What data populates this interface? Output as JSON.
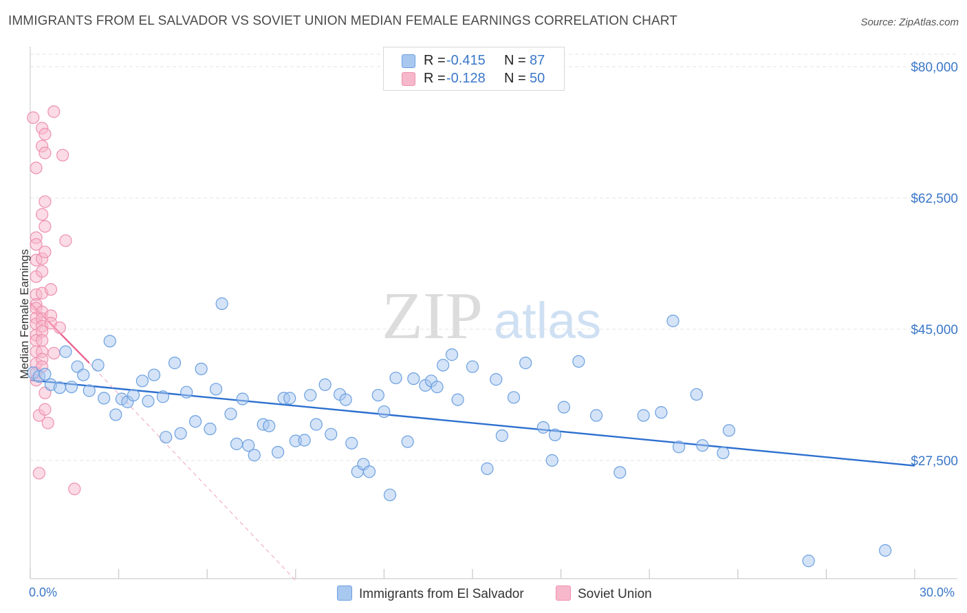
{
  "title": "IMMIGRANTS FROM EL SALVADOR VS SOVIET UNION MEDIAN FEMALE EARNINGS CORRELATION CHART",
  "source": "Source: ZipAtlas.com",
  "watermark": {
    "zip": "ZIP",
    "atlas": "atlas"
  },
  "legend": {
    "rows": [
      {
        "r_label": "R = ",
        "r_value": "-0.415",
        "n_label": "N = ",
        "n_value": "87",
        "color": "#a9c8f0"
      },
      {
        "r_label": "R = ",
        "r_value": "-0.128",
        "n_label": "N = ",
        "n_value": "50",
        "color": "#f7b8cb"
      }
    ]
  },
  "bottom_legend": {
    "series1": "Immigrants from El Salvador",
    "series2": "Soviet Union"
  },
  "colors": {
    "blue_fill": "#a9c8f0",
    "blue_stroke": "#6a9fe0",
    "blue_line": "#2c6fcf",
    "pink_fill": "#f7b8cb",
    "pink_stroke": "#ee8fae",
    "pink_line": "#e8628f",
    "axis_text": "#3a77c8",
    "grid": "#e3e3e3"
  },
  "chart_data": {
    "type": "scatter",
    "title": "IMMIGRANTS FROM EL SALVADOR VS SOVIET UNION MEDIAN FEMALE EARNINGS CORRELATION CHART",
    "xlabel": "",
    "ylabel": "Median Female Earnings",
    "xlim": [
      0,
      30
    ],
    "ylim": [
      10000,
      82500
    ],
    "x_tick_labels": [
      "0.0%",
      "30.0%"
    ],
    "y_ticks": [
      {
        "value": 80000,
        "label": "$80,000"
      },
      {
        "value": 62500,
        "label": "$62,500"
      },
      {
        "value": 45000,
        "label": "$45,000"
      },
      {
        "value": 27500,
        "label": "$27,500"
      }
    ],
    "series": [
      {
        "name": "Immigrants from El Salvador",
        "R": -0.415,
        "N": 87,
        "trend": {
          "x0": 0,
          "y0": 38200,
          "x1": 30,
          "y1": 26800
        },
        "points": [
          [
            0.1,
            39200
          ],
          [
            0.3,
            38700
          ],
          [
            0.5,
            39000
          ],
          [
            0.7,
            37600
          ],
          [
            1.0,
            37200
          ],
          [
            1.2,
            42000
          ],
          [
            1.4,
            37300
          ],
          [
            1.6,
            40000
          ],
          [
            1.8,
            38900
          ],
          [
            2.0,
            36800
          ],
          [
            2.3,
            40200
          ],
          [
            2.5,
            35800
          ],
          [
            2.7,
            43400
          ],
          [
            2.9,
            33600
          ],
          [
            3.1,
            35700
          ],
          [
            3.3,
            35300
          ],
          [
            3.5,
            36200
          ],
          [
            3.8,
            38100
          ],
          [
            4.0,
            35400
          ],
          [
            4.2,
            38900
          ],
          [
            4.5,
            36000
          ],
          [
            4.6,
            30600
          ],
          [
            4.9,
            40500
          ],
          [
            5.1,
            31100
          ],
          [
            5.3,
            36600
          ],
          [
            5.6,
            32700
          ],
          [
            5.8,
            39700
          ],
          [
            6.1,
            31700
          ],
          [
            6.3,
            37000
          ],
          [
            6.5,
            48400
          ],
          [
            6.8,
            33700
          ],
          [
            7.0,
            29700
          ],
          [
            7.2,
            35700
          ],
          [
            7.4,
            29500
          ],
          [
            7.6,
            28200
          ],
          [
            7.9,
            32300
          ],
          [
            8.1,
            32100
          ],
          [
            8.4,
            28600
          ],
          [
            8.6,
            35800
          ],
          [
            8.8,
            35800
          ],
          [
            9.0,
            30100
          ],
          [
            9.3,
            30200
          ],
          [
            9.5,
            36200
          ],
          [
            9.7,
            32300
          ],
          [
            10.0,
            37600
          ],
          [
            10.2,
            31000
          ],
          [
            10.5,
            36300
          ],
          [
            10.7,
            35600
          ],
          [
            10.9,
            29800
          ],
          [
            11.1,
            26000
          ],
          [
            11.3,
            27000
          ],
          [
            11.5,
            26000
          ],
          [
            11.8,
            36200
          ],
          [
            12.0,
            34000
          ],
          [
            12.2,
            22900
          ],
          [
            12.4,
            38500
          ],
          [
            12.8,
            30000
          ],
          [
            13.0,
            38400
          ],
          [
            13.4,
            37500
          ],
          [
            13.6,
            38100
          ],
          [
            13.8,
            37300
          ],
          [
            14.0,
            40200
          ],
          [
            14.3,
            41600
          ],
          [
            14.5,
            35600
          ],
          [
            15.0,
            40000
          ],
          [
            15.5,
            26400
          ],
          [
            15.8,
            38300
          ],
          [
            16.0,
            30800
          ],
          [
            16.4,
            35900
          ],
          [
            16.8,
            40500
          ],
          [
            17.4,
            31900
          ],
          [
            17.7,
            27500
          ],
          [
            17.8,
            30900
          ],
          [
            18.1,
            34600
          ],
          [
            18.6,
            40700
          ],
          [
            19.2,
            33500
          ],
          [
            20.0,
            25900
          ],
          [
            20.8,
            33500
          ],
          [
            21.4,
            33900
          ],
          [
            21.8,
            46100
          ],
          [
            22.0,
            29300
          ],
          [
            22.6,
            36300
          ],
          [
            22.8,
            29500
          ],
          [
            23.5,
            28500
          ],
          [
            23.7,
            31500
          ],
          [
            26.4,
            14100
          ],
          [
            29.0,
            15500
          ]
        ]
      },
      {
        "name": "Soviet Union",
        "R": -0.128,
        "N": 50,
        "trend": {
          "x0": 0,
          "y0": 48500,
          "x1": 2.0,
          "y1": 40500
        },
        "trend_extension": {
          "x0": 2.0,
          "y0": 40500,
          "x1": 9.0,
          "y1": 11500
        },
        "points": [
          [
            0.1,
            73200
          ],
          [
            0.2,
            66500
          ],
          [
            0.2,
            57200
          ],
          [
            0.2,
            56300
          ],
          [
            0.2,
            54200
          ],
          [
            0.2,
            52000
          ],
          [
            0.2,
            49600
          ],
          [
            0.2,
            48300
          ],
          [
            0.2,
            47800
          ],
          [
            0.2,
            46500
          ],
          [
            0.2,
            45700
          ],
          [
            0.2,
            44200
          ],
          [
            0.2,
            43500
          ],
          [
            0.2,
            42000
          ],
          [
            0.2,
            40400
          ],
          [
            0.2,
            39200
          ],
          [
            0.2,
            38200
          ],
          [
            0.3,
            33500
          ],
          [
            0.3,
            25800
          ],
          [
            0.4,
            71800
          ],
          [
            0.4,
            69400
          ],
          [
            0.4,
            60300
          ],
          [
            0.4,
            54400
          ],
          [
            0.4,
            52700
          ],
          [
            0.4,
            49800
          ],
          [
            0.4,
            47300
          ],
          [
            0.4,
            46400
          ],
          [
            0.4,
            45400
          ],
          [
            0.4,
            44700
          ],
          [
            0.4,
            43500
          ],
          [
            0.4,
            42000
          ],
          [
            0.4,
            41000
          ],
          [
            0.4,
            40000
          ],
          [
            0.5,
            71000
          ],
          [
            0.5,
            68500
          ],
          [
            0.5,
            62000
          ],
          [
            0.5,
            58700
          ],
          [
            0.5,
            55300
          ],
          [
            0.5,
            36500
          ],
          [
            0.5,
            34300
          ],
          [
            0.6,
            32500
          ],
          [
            0.7,
            50300
          ],
          [
            0.7,
            46800
          ],
          [
            0.7,
            45800
          ],
          [
            0.8,
            41800
          ],
          [
            0.8,
            74000
          ],
          [
            1.0,
            45200
          ],
          [
            1.1,
            68200
          ],
          [
            1.2,
            56800
          ],
          [
            1.5,
            23700
          ]
        ]
      }
    ]
  }
}
